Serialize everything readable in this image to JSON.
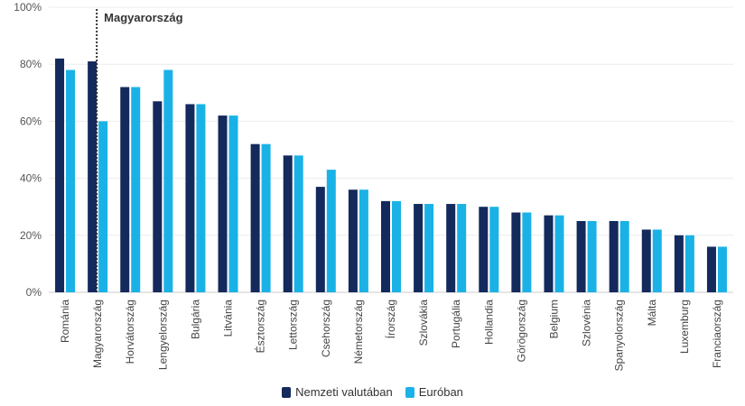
{
  "chart_data": {
    "type": "bar",
    "categories": [
      "Románia",
      "Magyarország",
      "Horvátország",
      "Lengyelország",
      "Bulgária",
      "Litvánia",
      "Észtország",
      "Lettország",
      "Csehország",
      "Németország",
      "Írország",
      "Szlovákia",
      "Portugália",
      "Hollandia",
      "Görögország",
      "Belgium",
      "Szlovénia",
      "Spanyolország",
      "Málta",
      "Luxemburg",
      "Franciaország"
    ],
    "series": [
      {
        "name": "Nemzeti valutában",
        "color": "#14295c",
        "values": [
          82,
          81,
          72,
          67,
          66,
          62,
          52,
          48,
          37,
          36,
          32,
          31,
          31,
          30,
          28,
          27,
          25,
          25,
          22,
          20,
          16
        ]
      },
      {
        "name": "Euróban",
        "color": "#1ab2e6",
        "values": [
          78,
          60,
          72,
          78,
          66,
          62,
          52,
          48,
          43,
          36,
          32,
          31,
          31,
          30,
          28,
          27,
          25,
          25,
          22,
          20,
          16
        ]
      }
    ],
    "ylim": [
      0,
      100
    ],
    "yticks": [
      "0%",
      "20%",
      "40%",
      "60%",
      "80%",
      "100%"
    ],
    "ytick_values": [
      0,
      20,
      40,
      60,
      80,
      100
    ],
    "annotation": {
      "label": "Magyarország",
      "category": "Magyarország"
    },
    "grid": true,
    "legend_position": "bottom"
  }
}
